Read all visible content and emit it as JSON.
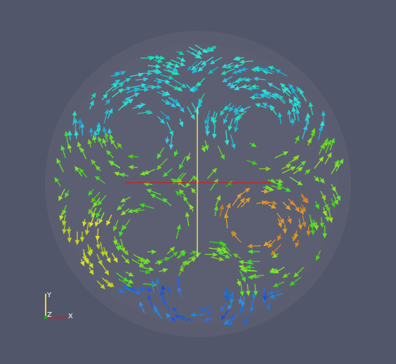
{
  "axes_triad": {
    "x_label": "X",
    "y_label": "Y",
    "z_label": "Z"
  }
}
